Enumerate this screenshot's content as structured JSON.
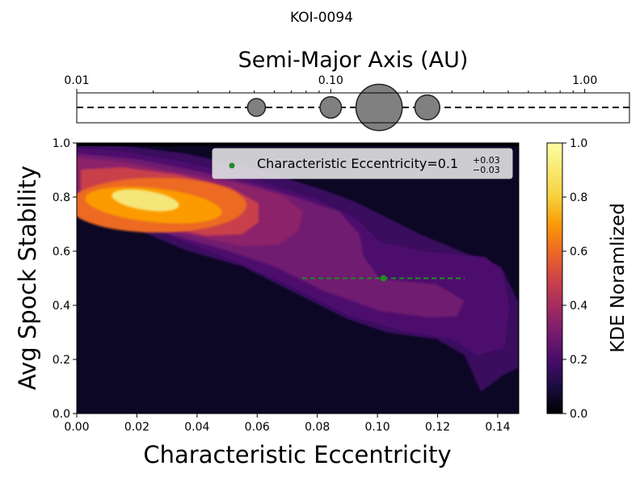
{
  "title": "KOI-0094",
  "chart_data": [
    {
      "type": "scatter",
      "title": "",
      "xlabel": "Semi-Major Axis (AU)",
      "xscale": "log",
      "xlim": [
        0.01,
        1.5
      ],
      "xticks": [
        "0.01",
        "0.10",
        "1.00"
      ],
      "planets_au": [
        0.051,
        0.1,
        0.155,
        0.24
      ],
      "relative_sizes": [
        1.0,
        1.2,
        2.6,
        1.4
      ],
      "planet_color": "#808080",
      "line_style": "dashed"
    },
    {
      "type": "heatmap",
      "xlabel": "Characteristic Eccentricity",
      "ylabel": "Avg Spock Stability",
      "xlim": [
        0,
        0.147
      ],
      "ylim": [
        0,
        1
      ],
      "xticks": [
        "0.00",
        "0.02",
        "0.04",
        "0.06",
        "0.08",
        "0.10",
        "0.12",
        "0.14"
      ],
      "yticks": [
        "0.0",
        "0.2",
        "0.4",
        "0.6",
        "0.8",
        "1.0"
      ],
      "colormap": "inferno",
      "colorbar_label": "KDE Noramlized",
      "colorbar_ticks": [
        "0.0",
        "0.2",
        "0.4",
        "0.6",
        "0.8",
        "1.0"
      ],
      "estimate": {
        "x": 0.102,
        "y": 0.5,
        "x_err_low": 0.027,
        "x_err_high": 0.027,
        "color": "#228b22"
      },
      "legend": {
        "label": "Characteristic Eccentricity=0.1",
        "sup": "+0.03",
        "sub": "−0.03",
        "position": "top-right"
      }
    }
  ]
}
